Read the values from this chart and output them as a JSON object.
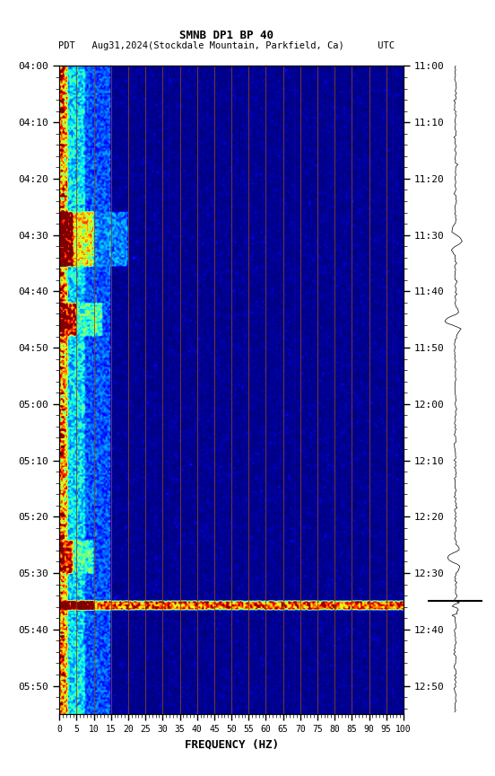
{
  "title1": "SMNB DP1 BP 40",
  "title2": "PDT   Aug31,2024(Stockdale Mountain, Parkfield, Ca)      UTC",
  "xlabel": "FREQUENCY (HZ)",
  "freq_ticks": [
    0,
    5,
    10,
    15,
    20,
    25,
    30,
    35,
    40,
    45,
    50,
    55,
    60,
    65,
    70,
    75,
    80,
    85,
    90,
    95,
    100
  ],
  "left_ticks": [
    "04:00",
    "04:10",
    "04:20",
    "04:30",
    "04:40",
    "04:50",
    "05:00",
    "05:10",
    "05:20",
    "05:30",
    "05:40",
    "05:50"
  ],
  "right_ticks": [
    "11:00",
    "11:10",
    "11:20",
    "11:30",
    "11:40",
    "11:50",
    "12:00",
    "12:10",
    "12:20",
    "12:30",
    "12:40",
    "12:50"
  ],
  "n_time": 355,
  "n_freq": 200,
  "grid_color": "#8B4513",
  "fig_width": 5.52,
  "fig_height": 8.64,
  "total_minutes": 115
}
